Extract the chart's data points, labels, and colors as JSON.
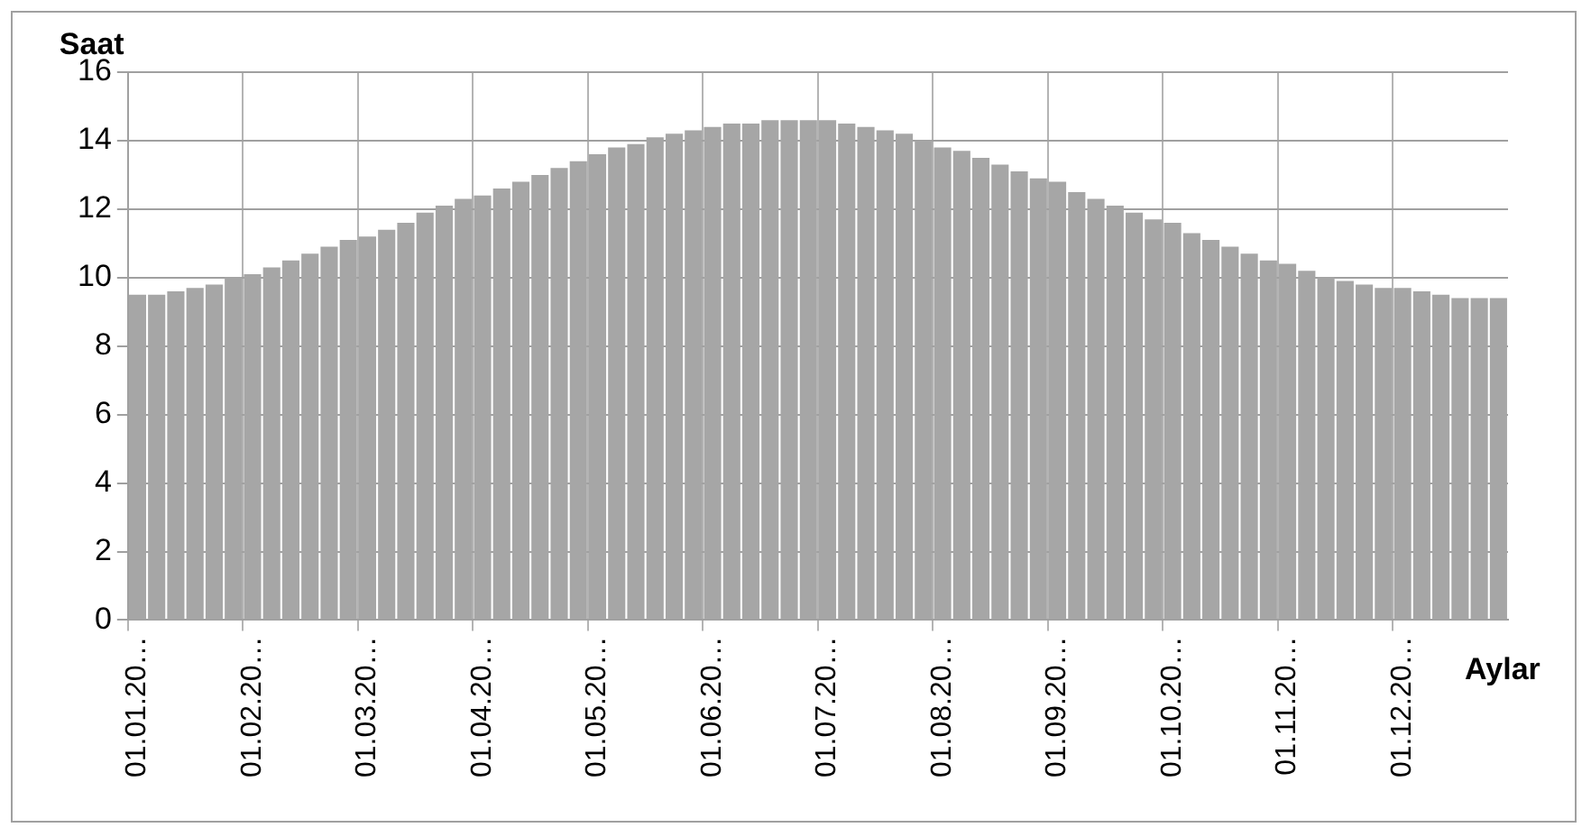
{
  "chart_data": {
    "type": "bar",
    "xlabel": "Aylar",
    "ylabel": "Saat",
    "categories": [
      "01.01.20…",
      null,
      null,
      null,
      null,
      null,
      "01.02.20…",
      null,
      null,
      null,
      null,
      null,
      "01.03.20…",
      null,
      null,
      null,
      null,
      null,
      "01.04.20…",
      null,
      null,
      null,
      null,
      null,
      "01.05.20…",
      null,
      null,
      null,
      null,
      null,
      "01.06.20…",
      null,
      null,
      null,
      null,
      null,
      "01.07.20…",
      null,
      null,
      null,
      null,
      null,
      "01.08.20…",
      null,
      null,
      null,
      null,
      null,
      "01.09.20…",
      null,
      null,
      null,
      null,
      null,
      "01.10.20…",
      null,
      null,
      null,
      null,
      null,
      "01.11.20…",
      null,
      null,
      null,
      null,
      null,
      "01.12.20…",
      null,
      null,
      null,
      null,
      null
    ],
    "values": [
      9.5,
      9.5,
      9.6,
      9.7,
      9.8,
      10.0,
      10.1,
      10.3,
      10.5,
      10.7,
      10.9,
      11.1,
      11.2,
      11.4,
      11.6,
      11.9,
      12.1,
      12.3,
      12.4,
      12.6,
      12.8,
      13.0,
      13.2,
      13.4,
      13.6,
      13.8,
      13.9,
      14.1,
      14.2,
      14.3,
      14.4,
      14.5,
      14.5,
      14.6,
      14.6,
      14.6,
      14.6,
      14.5,
      14.4,
      14.3,
      14.2,
      14.0,
      13.8,
      13.7,
      13.5,
      13.3,
      13.1,
      12.9,
      12.8,
      12.5,
      12.3,
      12.1,
      11.9,
      11.7,
      11.6,
      11.3,
      11.1,
      10.9,
      10.7,
      10.5,
      10.4,
      10.2,
      10.0,
      9.9,
      9.8,
      9.7,
      9.7,
      9.6,
      9.5,
      9.4,
      9.4,
      9.4
    ],
    "color": "#a6a6a6",
    "ylim": [
      0,
      16
    ],
    "yticks": [
      0,
      2,
      4,
      6,
      8,
      10,
      12,
      14,
      16
    ],
    "grid": true
  }
}
